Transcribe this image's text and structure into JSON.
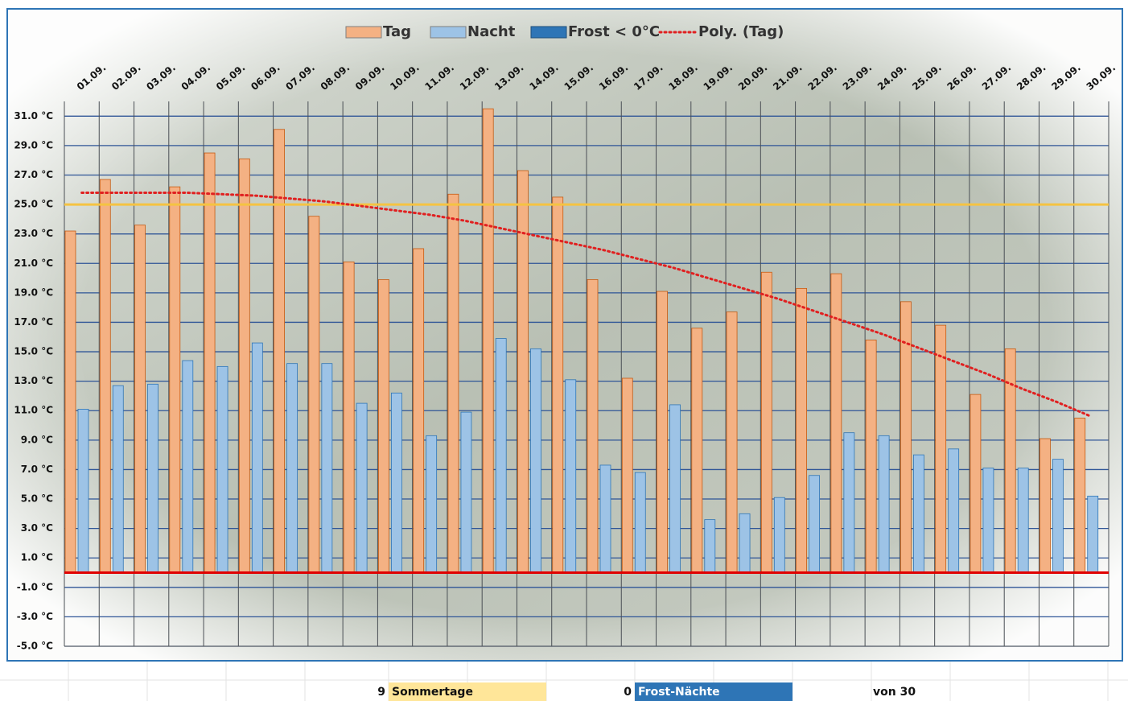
{
  "chart_data": {
    "type": "bar",
    "categories": [
      "01.09.",
      "02.09.",
      "03.09.",
      "04.09.",
      "05.09.",
      "06.09.",
      "07.09.",
      "08.09.",
      "09.09.",
      "10.09.",
      "11.09.",
      "12.09.",
      "13.09.",
      "14.09.",
      "15.09.",
      "16.09.",
      "17.09.",
      "18.09.",
      "19.09.",
      "20.09.",
      "21.09.",
      "22.09.",
      "23.09.",
      "24.09.",
      "25.09.",
      "26.09.",
      "27.09.",
      "28.09.",
      "29.09.",
      "30.09."
    ],
    "series": [
      {
        "name": "Tag",
        "color": "#f4b183",
        "values": [
          23.2,
          26.7,
          23.6,
          26.2,
          28.5,
          28.1,
          30.1,
          24.2,
          21.1,
          19.9,
          22.0,
          25.7,
          31.5,
          27.3,
          25.5,
          19.9,
          13.2,
          19.1,
          16.6,
          17.7,
          20.4,
          19.3,
          20.3,
          15.8,
          18.4,
          16.8,
          12.1,
          15.2,
          9.1,
          10.5
        ]
      },
      {
        "name": "Nacht",
        "color": "#9dc3e6",
        "values": [
          11.1,
          12.7,
          12.8,
          14.4,
          14.0,
          15.6,
          14.2,
          14.2,
          11.5,
          12.2,
          9.3,
          10.9,
          15.9,
          15.2,
          13.1,
          7.3,
          6.8,
          11.4,
          3.6,
          4.0,
          5.1,
          6.6,
          9.5,
          9.3,
          8.0,
          8.4,
          7.1,
          7.1,
          7.7,
          5.2
        ]
      },
      {
        "name": "Frost < 0°C",
        "color": "#2e75b6",
        "values": [
          null,
          null,
          null,
          null,
          null,
          null,
          null,
          null,
          null,
          null,
          null,
          null,
          null,
          null,
          null,
          null,
          null,
          null,
          null,
          null,
          null,
          null,
          null,
          null,
          null,
          null,
          null,
          null,
          null,
          null
        ]
      },
      {
        "name": "Poly. (Tag)",
        "color": "#e02020",
        "style": "dotted-line",
        "values": [
          25.8,
          25.8,
          25.8,
          25.8,
          25.7,
          25.6,
          25.4,
          25.2,
          24.9,
          24.6,
          24.3,
          23.9,
          23.4,
          22.9,
          22.4,
          21.9,
          21.3,
          20.7,
          20.0,
          19.3,
          18.6,
          17.8,
          17.0,
          16.2,
          15.3,
          14.4,
          13.5,
          12.5,
          11.6,
          10.6
        ]
      }
    ],
    "ylim": [
      -5,
      32
    ],
    "yticks": [
      {
        "value": -5,
        "label": "-5.0 °C"
      },
      {
        "value": -3,
        "label": "-3.0 °C"
      },
      {
        "value": -1,
        "label": "-1.0 °C"
      },
      {
        "value": 1,
        "label": "1.0 °C"
      },
      {
        "value": 3,
        "label": "3.0 °C"
      },
      {
        "value": 5,
        "label": "5.0 °C"
      },
      {
        "value": 7,
        "label": "7.0 °C"
      },
      {
        "value": 9,
        "label": "9.0 °C"
      },
      {
        "value": 11,
        "label": "11.0 °C"
      },
      {
        "value": 13,
        "label": "13.0 °C"
      },
      {
        "value": 15,
        "label": "15.0 °C"
      },
      {
        "value": 17,
        "label": "17.0 °C"
      },
      {
        "value": 19,
        "label": "19.0 °C"
      },
      {
        "value": 21,
        "label": "21.0 °C"
      },
      {
        "value": 23,
        "label": "23.0 °C"
      },
      {
        "value": 25,
        "label": "25.0 °C"
      },
      {
        "value": 27,
        "label": "27.0 °C"
      },
      {
        "value": 29,
        "label": "29.0 °C"
      },
      {
        "value": 31,
        "label": "31.0 °C"
      }
    ],
    "grid": true,
    "legend": "top",
    "reference_lines": [
      {
        "value": 25,
        "color": "#f5c342"
      },
      {
        "value": 0,
        "color": "#e00000"
      }
    ]
  },
  "summary": {
    "sommer_count": "9",
    "sommer_label": "Sommertage",
    "frost_count": "0",
    "frost_label": "Frost-Nächte",
    "total": "von 30"
  }
}
